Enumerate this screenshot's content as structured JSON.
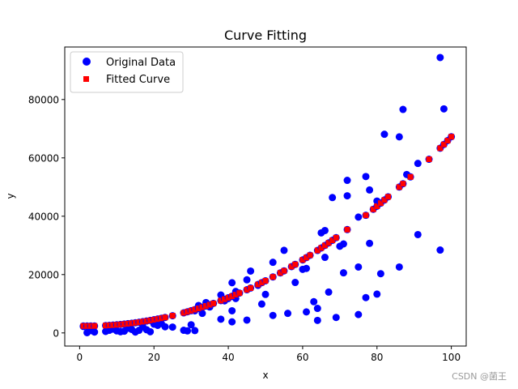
{
  "chart_data": {
    "type": "scatter",
    "title": "Curve Fitting",
    "xlabel": "x",
    "ylabel": "y",
    "xlim": [
      -4,
      104
    ],
    "ylim": [
      -4500,
      98000
    ],
    "xticks": [
      0,
      20,
      40,
      60,
      80,
      100
    ],
    "yticks": [
      0,
      20000,
      40000,
      60000,
      80000
    ],
    "grid": false,
    "legend_position": "top-left",
    "series": [
      {
        "name": "Original Data",
        "marker": "circle",
        "color": "#0000ff",
        "points": [
          [
            1,
            2200
          ],
          [
            2,
            100
          ],
          [
            3,
            800
          ],
          [
            4,
            300
          ],
          [
            7,
            500
          ],
          [
            8,
            900
          ],
          [
            9,
            1300
          ],
          [
            10,
            700
          ],
          [
            11,
            400
          ],
          [
            12,
            600
          ],
          [
            13,
            1600
          ],
          [
            14,
            1200
          ],
          [
            15,
            300
          ],
          [
            16,
            900
          ],
          [
            17,
            2100
          ],
          [
            18,
            1100
          ],
          [
            19,
            400
          ],
          [
            20,
            3000
          ],
          [
            21,
            2600
          ],
          [
            22,
            3200
          ],
          [
            23,
            2100
          ],
          [
            25,
            2000
          ],
          [
            28,
            900
          ],
          [
            29,
            700
          ],
          [
            30,
            2800
          ],
          [
            31,
            800
          ],
          [
            31,
            7600
          ],
          [
            32,
            9400
          ],
          [
            33,
            6700
          ],
          [
            34,
            10400
          ],
          [
            35,
            8900
          ],
          [
            38,
            4700
          ],
          [
            38,
            13000
          ],
          [
            39,
            11000
          ],
          [
            40,
            11800
          ],
          [
            41,
            7600
          ],
          [
            41,
            3800
          ],
          [
            41,
            17200
          ],
          [
            42,
            14200
          ],
          [
            42,
            11800
          ],
          [
            45,
            4400
          ],
          [
            45,
            18200
          ],
          [
            46,
            21200
          ],
          [
            48,
            16300
          ],
          [
            49,
            9900
          ],
          [
            50,
            13200
          ],
          [
            52,
            24200
          ],
          [
            52,
            6000
          ],
          [
            55,
            28300
          ],
          [
            56,
            6700
          ],
          [
            58,
            17300
          ],
          [
            60,
            21800
          ],
          [
            61,
            22100
          ],
          [
            61,
            7200
          ],
          [
            63,
            10700
          ],
          [
            64,
            4300
          ],
          [
            64,
            8400
          ],
          [
            65,
            34300
          ],
          [
            66,
            35100
          ],
          [
            66,
            25900
          ],
          [
            67,
            14000
          ],
          [
            68,
            46400
          ],
          [
            69,
            5300
          ],
          [
            70,
            29700
          ],
          [
            71,
            30500
          ],
          [
            71,
            20600
          ],
          [
            72,
            47000
          ],
          [
            72,
            52300
          ],
          [
            75,
            39700
          ],
          [
            75,
            22600
          ],
          [
            75,
            6300
          ],
          [
            77,
            53600
          ],
          [
            77,
            12100
          ],
          [
            78,
            49000
          ],
          [
            78,
            30700
          ],
          [
            80,
            45200
          ],
          [
            80,
            13300
          ],
          [
            81,
            20300
          ],
          [
            82,
            68100
          ],
          [
            86,
            67200
          ],
          [
            86,
            22600
          ],
          [
            87,
            76600
          ],
          [
            88,
            54300
          ],
          [
            91,
            58100
          ],
          [
            91,
            33700
          ],
          [
            97,
            94400
          ],
          [
            97,
            28400
          ],
          [
            98,
            76800
          ]
        ]
      },
      {
        "name": "Fitted Curve",
        "marker": "square",
        "color": "#ff0000",
        "x": [
          1,
          2,
          3,
          4,
          7,
          8,
          9,
          10,
          11,
          12,
          13,
          14,
          15,
          16,
          17,
          18,
          19,
          20,
          21,
          22,
          23,
          25,
          28,
          29,
          30,
          31,
          32,
          33,
          34,
          35,
          36,
          38,
          39,
          40,
          41,
          42,
          43,
          45,
          46,
          48,
          49,
          50,
          52,
          54,
          55,
          57,
          58,
          60,
          61,
          62,
          64,
          65,
          66,
          67,
          68,
          69,
          72,
          77,
          79,
          80,
          81,
          82,
          83,
          86,
          87,
          89,
          94,
          97,
          98,
          99,
          100
        ],
        "coef": [
          6.78,
          -29.6,
          2398.4
        ]
      }
    ]
  },
  "watermark": "CSDN @菌王"
}
